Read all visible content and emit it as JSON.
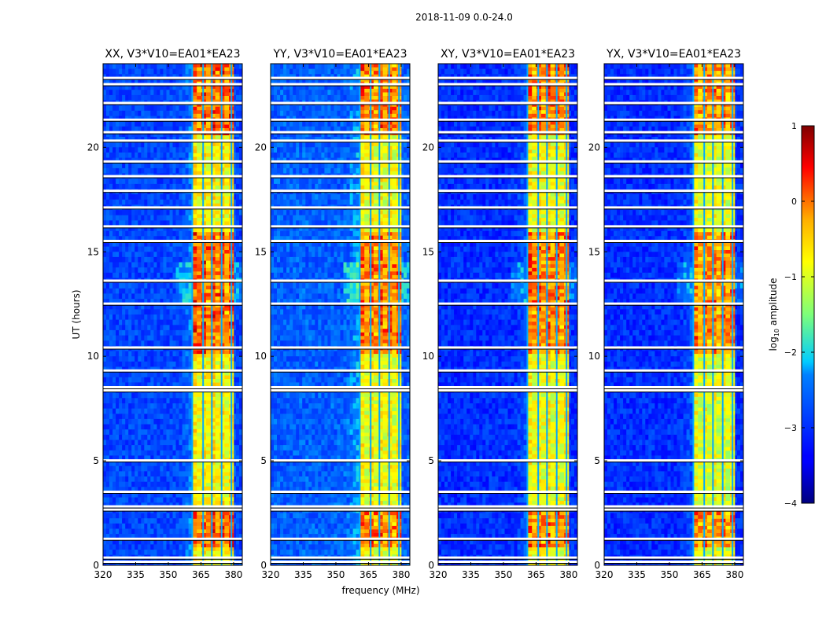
{
  "chart_data": {
    "type": "heatmap",
    "title": "2018-11-09 0.0-24.0",
    "xlabel": "frequency (MHz)",
    "ylabel": "UT (hours)",
    "xlim": [
      320,
      384
    ],
    "ylim": [
      0,
      24
    ],
    "xticks": [
      320,
      335,
      350,
      365,
      380
    ],
    "yticks": [
      0,
      5,
      10,
      15,
      20
    ],
    "colorbar": {
      "label": "log$_{10}$ amplitude",
      "label_main": "log",
      "label_sub": "10",
      "label_rest": " amplitude",
      "range": [
        -4,
        1
      ],
      "ticks": [
        1,
        0,
        -1,
        -2,
        -3,
        -4
      ],
      "tick_labels": [
        "1",
        "0",
        "−1",
        "−2",
        "−3",
        "−4"
      ],
      "colormap": "jet"
    },
    "panels": [
      {
        "name": "XX",
        "title": "XX, V3*V10=EA01*EA23",
        "background_level": -2.8,
        "band_level": -0.6,
        "peak_level": 0.5
      },
      {
        "name": "YY",
        "title": "YY, V3*V10=EA01*EA23",
        "background_level": -2.6,
        "band_level": -0.7,
        "peak_level": 0.4
      },
      {
        "name": "XY",
        "title": "XY, V3*V10=EA01*EA23",
        "background_level": -3.0,
        "band_level": -0.7,
        "peak_level": 0.5
      },
      {
        "name": "YX",
        "title": "YX, V3*V10=EA01*EA23",
        "background_level": -3.0,
        "band_level": -0.8,
        "peak_level": 0.4
      }
    ],
    "rfi_band_mhz": [
      361,
      380
    ],
    "rfi_subchannels_mhz": [
      361,
      366,
      370,
      374.5,
      379
    ],
    "flagged_hours": [
      0.15,
      0.35,
      1.25,
      2.65,
      2.8,
      3.5,
      5.0,
      8.35,
      8.5,
      9.3,
      10.4,
      12.5,
      13.6,
      15.5,
      16.2,
      17.1,
      17.9,
      18.6,
      19.3,
      20.3,
      20.7,
      21.3,
      22.1,
      23.0,
      23.3
    ]
  }
}
